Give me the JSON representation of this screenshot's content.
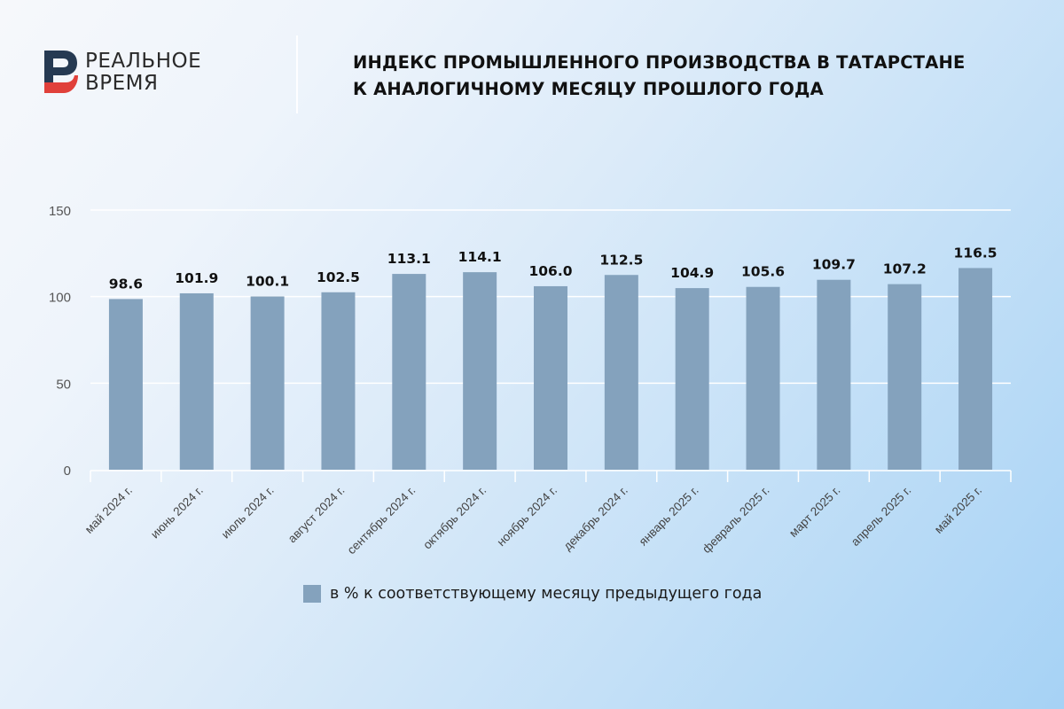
{
  "brand": {
    "name_line1": "РЕАЛЬНОЕ",
    "name_line2": "ВРЕМЯ",
    "colors": {
      "dark": "#263a52",
      "red": "#e0403a"
    }
  },
  "header": {
    "title_line1": "ИНДЕКС ПРОМЫШЛЕННОГО ПРОИЗВОДСТВА В ТАТАРСТАНЕ",
    "title_line2": "К АНАЛОГИЧНОМУ МЕСЯЦУ ПРОШЛОГО ГОДА"
  },
  "legend": {
    "label": "в % к соответствующему месяцу предыдущего года",
    "color": "#84a2bd"
  },
  "chart_data": {
    "type": "bar",
    "title": "Индекс промышленного производства в Татарстане к аналогичному месяцу прошлого года",
    "xlabel": "",
    "ylabel": "",
    "ylim": [
      0,
      150
    ],
    "yticks": [
      0,
      50,
      100,
      150
    ],
    "grid": true,
    "legend_position": "bottom",
    "categories": [
      "май 2024 г.",
      "июнь 2024 г.",
      "июль 2024 г.",
      "август 2024 г.",
      "сентябрь 2024 г.",
      "октябрь 2024 г.",
      "ноябрь 2024 г.",
      "декабрь 2024 г.",
      "январь 2025 г.",
      "февраль 2025 г.",
      "март 2025 г.",
      "апрель 2025 г.",
      "май 2025 г."
    ],
    "series": [
      {
        "name": "в % к соответствующему месяцу предыдущего года",
        "color": "#84a2bd",
        "values": [
          98.6,
          101.9,
          100.1,
          102.5,
          113.1,
          114.1,
          106.0,
          112.5,
          104.9,
          105.6,
          109.7,
          107.2,
          116.5
        ],
        "labels": [
          "98.6",
          "101.9",
          "100.1",
          "102.5",
          "113.1",
          "114.1",
          "106.0",
          "112.5",
          "104.9",
          "105.6",
          "109.7",
          "107.2",
          "116.5"
        ]
      }
    ]
  }
}
